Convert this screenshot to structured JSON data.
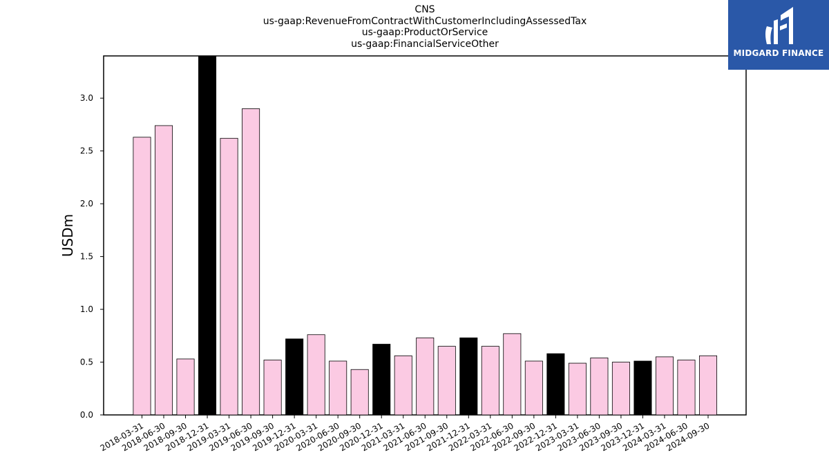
{
  "title_lines": [
    "CNS",
    "us-gaap:RevenueFromContractWithCustomerIncludingAssessedTax",
    "us-gaap:ProductOrService",
    "us-gaap:FinancialServiceOther"
  ],
  "logo": {
    "text": "MIDGARD FINANCE",
    "color": "#2a58a8"
  },
  "chart_data": {
    "type": "bar",
    "title": "CNS us-gaap:RevenueFromContractWithCustomerIncludingAssessedTax us-gaap:ProductOrService us-gaap:FinancialServiceOther",
    "xlabel": "",
    "ylabel": "USDm",
    "ylim": [
      0,
      3.4
    ],
    "yticks": [
      0.0,
      0.5,
      1.0,
      1.5,
      2.0,
      2.5,
      3.0
    ],
    "ytick_labels": [
      "0.0",
      "0.5",
      "1.0",
      "1.5",
      "2.0",
      "2.5",
      "3.0"
    ],
    "grid": false,
    "colors": {
      "quarter": "#fbcae3",
      "year_end": "#000000",
      "edge": "#000000"
    },
    "categories": [
      "2018-03-31",
      "2018-06-30",
      "2018-09-30",
      "2018-12-31",
      "2019-03-31",
      "2019-06-30",
      "2019-09-30",
      "2019-12-31",
      "2020-03-31",
      "2020-06-30",
      "2020-09-30",
      "2020-12-31",
      "2021-03-31",
      "2021-06-30",
      "2021-09-30",
      "2021-12-31",
      "2022-03-31",
      "2022-06-30",
      "2022-09-30",
      "2022-12-31",
      "2023-03-31",
      "2023-06-30",
      "2023-09-30",
      "2023-12-31",
      "2024-03-31",
      "2024-06-30",
      "2024-09-30"
    ],
    "values": [
      2.63,
      2.74,
      0.53,
      3.4,
      2.62,
      2.9,
      0.52,
      0.72,
      0.76,
      0.51,
      0.43,
      0.67,
      0.56,
      0.73,
      0.65,
      0.73,
      0.65,
      0.77,
      0.51,
      0.58,
      0.49,
      0.54,
      0.5,
      0.51,
      0.55,
      0.52,
      0.56
    ],
    "year_end": [
      false,
      false,
      false,
      true,
      false,
      false,
      false,
      true,
      false,
      false,
      false,
      true,
      false,
      false,
      false,
      true,
      false,
      false,
      false,
      true,
      false,
      false,
      false,
      true,
      false,
      false,
      false
    ]
  }
}
